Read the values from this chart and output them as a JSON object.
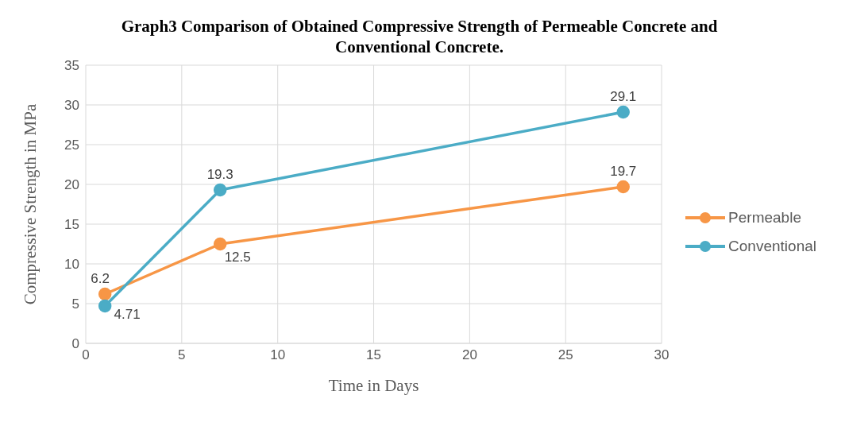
{
  "chart_data": {
    "type": "line",
    "title": "Graph3 Comparison of Obtained Compressive Strength of Permeable Concrete and Conventional Concrete.",
    "xlabel": "Time in Days",
    "ylabel": "Compressive Strength in MPa",
    "x": [
      1,
      7,
      28
    ],
    "series": [
      {
        "name": "Permeable",
        "color": "#f79646",
        "values": [
          6.2,
          12.5,
          19.7
        ]
      },
      {
        "name": "Conventional",
        "color": "#4bacc6",
        "values": [
          4.71,
          19.3,
          29.1
        ]
      }
    ],
    "xlim": [
      0,
      30
    ],
    "xticks": [
      0,
      5,
      10,
      15,
      20,
      25,
      30
    ],
    "ylim": [
      0,
      35
    ],
    "yticks": [
      0,
      5,
      10,
      15,
      20,
      25,
      30,
      35
    ],
    "grid": true,
    "legend": "right",
    "marker": "circle",
    "line_style": "solid",
    "data_labels": true
  }
}
